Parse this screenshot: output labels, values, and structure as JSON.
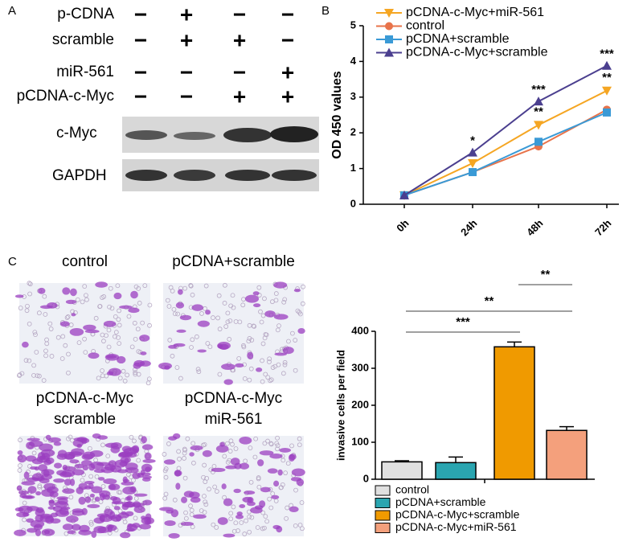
{
  "panel_labels": [
    "A",
    "B",
    "C"
  ],
  "panel_a": {
    "rows": [
      {
        "label": "p-CDNA",
        "signs": [
          "−",
          "+",
          "−",
          "−"
        ]
      },
      {
        "label": "scramble",
        "signs": [
          "−",
          "+",
          "+",
          "−"
        ]
      },
      {
        "label": "miR-561",
        "signs": [
          "−",
          "−",
          "−",
          "+"
        ]
      },
      {
        "label": "pCDNA-c-Myc",
        "signs": [
          "−",
          "−",
          "+",
          "+"
        ]
      }
    ],
    "blots": [
      "c-Myc",
      "GAPDH"
    ]
  },
  "panel_c_images": [
    [
      "control"
    ],
    [
      "pCDNA+scramble"
    ],
    [
      "pCDNA-c-Myc",
      "scramble"
    ],
    [
      "pCDNA-c-Myc",
      "miR-561"
    ]
  ],
  "chart_data": [
    {
      "type": "line",
      "y_label": "OD 450 values",
      "categories": [
        "0h",
        "24h",
        "48h",
        "72h"
      ],
      "ylim": [
        0,
        5
      ],
      "yticks": [
        0,
        1,
        2,
        3,
        4,
        5
      ],
      "series": [
        {
          "name": "pCDNA-c-Myc+miR-561",
          "color": "#f5a623",
          "marker": "triangle-down",
          "values": [
            0.25,
            1.15,
            2.22,
            3.18
          ]
        },
        {
          "name": "control",
          "color": "#e8734a",
          "marker": "circle",
          "values": [
            0.25,
            0.9,
            1.62,
            2.65
          ]
        },
        {
          "name": "pCDNA+scramble",
          "color": "#3a9ad6",
          "marker": "square",
          "values": [
            0.25,
            0.9,
            1.75,
            2.57
          ]
        },
        {
          "name": "pCDNA-c-Myc+scramble",
          "color": "#4b3f8f",
          "marker": "triangle-up",
          "values": [
            0.25,
            1.45,
            2.88,
            3.88
          ]
        }
      ],
      "annotations": [
        {
          "text": "*",
          "category": "24h"
        },
        {
          "text": "***",
          "category": "48h"
        },
        {
          "text": "**",
          "category": "48h"
        },
        {
          "text": "***",
          "category": "72h"
        },
        {
          "text": "**",
          "category": "72h"
        }
      ]
    },
    {
      "type": "bar",
      "y_label": "invasive cells per field",
      "categories": [
        "control",
        "pCDNA+scramble",
        "pCDNA-c-Myc+scramble",
        "pCDNA-c-Myc+miR-561"
      ],
      "colors": [
        "#e0e0e0",
        "#2aa5b0",
        "#f09a00",
        "#f4a07c"
      ],
      "values": [
        47,
        45,
        358,
        132
      ],
      "errors": [
        3,
        15,
        13,
        10
      ],
      "ylim": [
        0,
        400
      ],
      "yticks": [
        0,
        100,
        200,
        300,
        400
      ],
      "significance": [
        {
          "text": "***",
          "from": "control",
          "to": "pCDNA-c-Myc+scramble"
        },
        {
          "text": "**",
          "from": "control",
          "to": "pCDNA-c-Myc+miR-561"
        },
        {
          "text": "**",
          "from": "pCDNA-c-Myc+scramble",
          "to": "pCDNA-c-Myc+miR-561"
        }
      ]
    }
  ]
}
